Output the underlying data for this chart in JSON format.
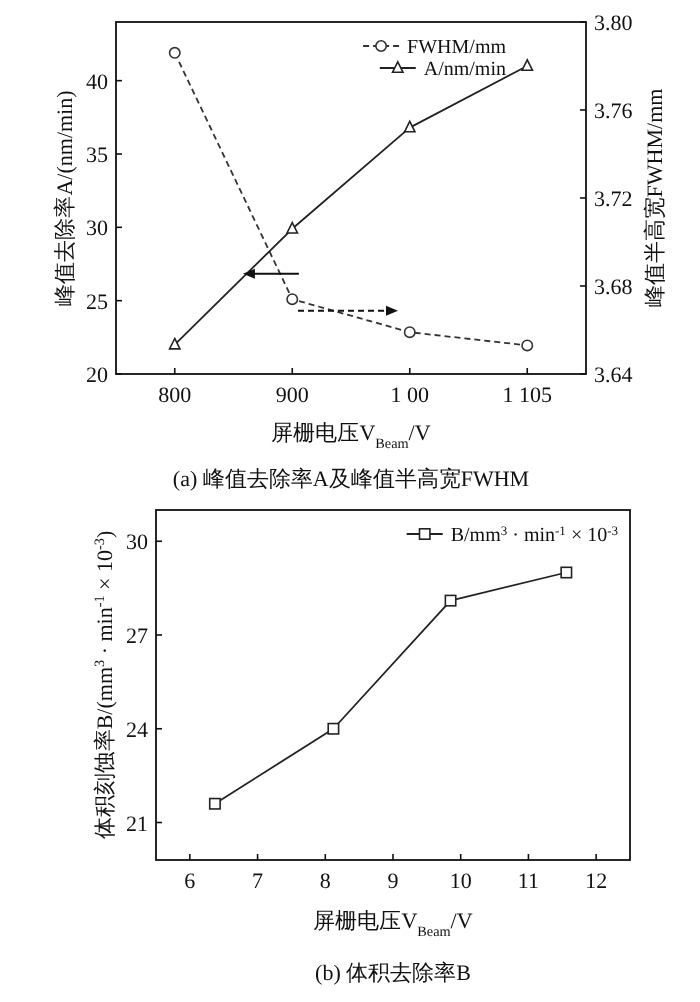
{
  "chart_data": [
    {
      "type": "line",
      "xlabel": "屏栅电压V$_{Beam}$/V",
      "ylabel": "峰值去除率A/(nm/min)",
      "y2label": "峰值半高宽FWHM/mm",
      "categories": [
        "800",
        "900",
        "1 00",
        "1 105"
      ],
      "series": [
        {
          "name": "FWHM/mm",
          "color": "#333333",
          "values": [
            3.786,
            3.674,
            3.659,
            3.653
          ],
          "axis": "y2",
          "marker": "circle",
          "line_style": "dashed"
        },
        {
          "name": "A/nm/min",
          "color": "#222222",
          "values": [
            22.0,
            29.9,
            36.8,
            41.0
          ],
          "marker": "triangle",
          "line_style": "solid"
        }
      ],
      "ylim": [
        20,
        44
      ],
      "yticks": [
        20,
        25,
        30,
        35,
        40
      ],
      "y2lim": [
        3.64,
        3.8
      ],
      "y2ticks": [
        3.64,
        3.68,
        3.72,
        3.76,
        {
          "value": 3.8,
          "label": "3.80"
        }
      ],
      "legend": "top right",
      "annotations": [
        "(a) 峰值去除率A及峰值半高宽FWHM"
      ]
    },
    {
      "type": "line",
      "xlabel": "屏栅电压V$_{Beam}$/V",
      "ylabel": "体积刻蚀率B/(mm$^{3}$ · min$^{-1}$ × 10$^{-3}$)",
      "x": [
        6.37,
        8.12,
        9.85,
        11.56
      ],
      "series": [
        {
          "name": "B/mm$^{3}$ · min$^{-1}$ × 10$^{-3}$",
          "color": "#222222",
          "values": [
            21.6,
            24.0,
            28.1,
            29.0
          ],
          "marker": "square",
          "line_style": "solid"
        }
      ],
      "xlim": [
        5.5,
        12.5
      ],
      "xticks": [
        6,
        7,
        8,
        9,
        10,
        11,
        12
      ],
      "ylim": [
        19.8,
        31
      ],
      "yticks": [
        21,
        24,
        27,
        30
      ],
      "legend": "top right",
      "annotations": [
        "(b) 体积去除率B"
      ]
    }
  ]
}
